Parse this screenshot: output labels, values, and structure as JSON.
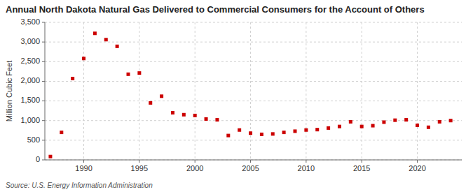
{
  "chart_data": {
    "type": "scatter",
    "title": "Annual North Dakota Natural Gas Delivered to Commercial Consumers for the Account of Others",
    "y_label": "Million Cubic Feet",
    "annotations": [
      "Source: U.S. Energy Information Administration"
    ],
    "x": [
      1987,
      1988,
      1989,
      1990,
      1991,
      1992,
      1993,
      1994,
      1995,
      1996,
      1997,
      1998,
      1999,
      2000,
      2001,
      2002,
      2003,
      2004,
      2005,
      2006,
      2007,
      2008,
      2009,
      2010,
      2011,
      2012,
      2013,
      2014,
      2015,
      2016,
      2017,
      2018,
      2019,
      2020,
      2021,
      2022,
      2023
    ],
    "values": [
      85,
      700,
      2070,
      2580,
      3220,
      3060,
      2890,
      2180,
      2210,
      1450,
      1620,
      1200,
      1150,
      1130,
      1040,
      1020,
      620,
      760,
      680,
      650,
      660,
      700,
      730,
      760,
      770,
      810,
      850,
      970,
      850,
      870,
      960,
      1010,
      1020,
      880,
      830,
      970,
      1000
    ],
    "color": "#cc0000",
    "marker": "square",
    "xlim": [
      1986.5,
      2024
    ],
    "xticks": [
      1990,
      1995,
      2000,
      2005,
      2010,
      2015,
      2020
    ],
    "ylim": [
      0,
      3500
    ],
    "yticks": [
      0,
      500,
      {
        "value": 1000,
        "label": "1,000"
      },
      {
        "value": 1500,
        "label": "1,500"
      },
      {
        "value": 2000,
        "label": "2,000"
      },
      {
        "value": 2500,
        "label": "2,500"
      },
      {
        "value": 3000,
        "label": "3,000"
      },
      {
        "value": 3500,
        "label": "3,500"
      }
    ],
    "grid": true
  }
}
